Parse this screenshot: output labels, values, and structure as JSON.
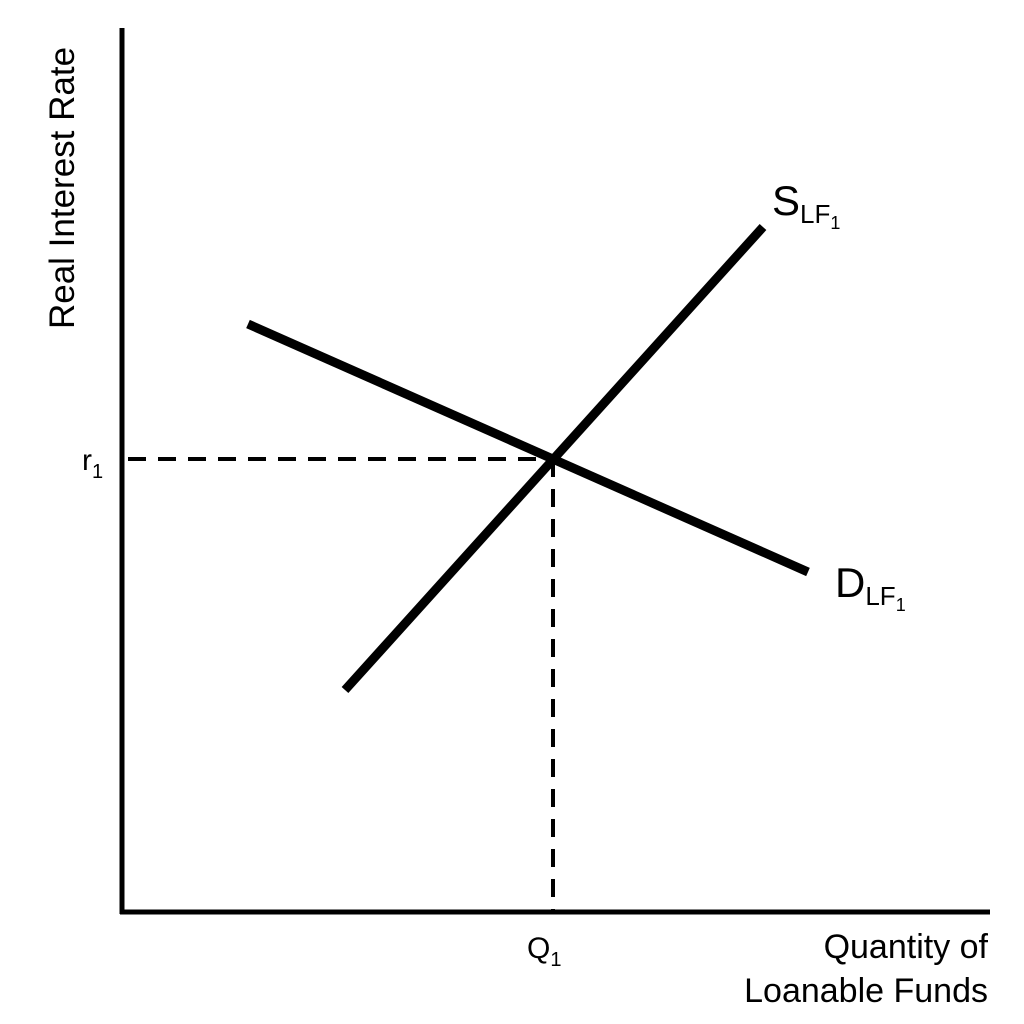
{
  "y_axis": {
    "label": "Real Interest Rate"
  },
  "x_axis": {
    "label_lines": [
      "Quantity of",
      "Loanable Funds"
    ]
  },
  "equilibrium": {
    "rate": {
      "base": "r",
      "sub": "1"
    },
    "quantity": {
      "base": "Q",
      "sub": "1"
    }
  },
  "curves": [
    {
      "base": "S",
      "sub": "LF",
      "subsub": "1"
    },
    {
      "base": "D",
      "sub": "LF",
      "subsub": "1"
    }
  ]
}
